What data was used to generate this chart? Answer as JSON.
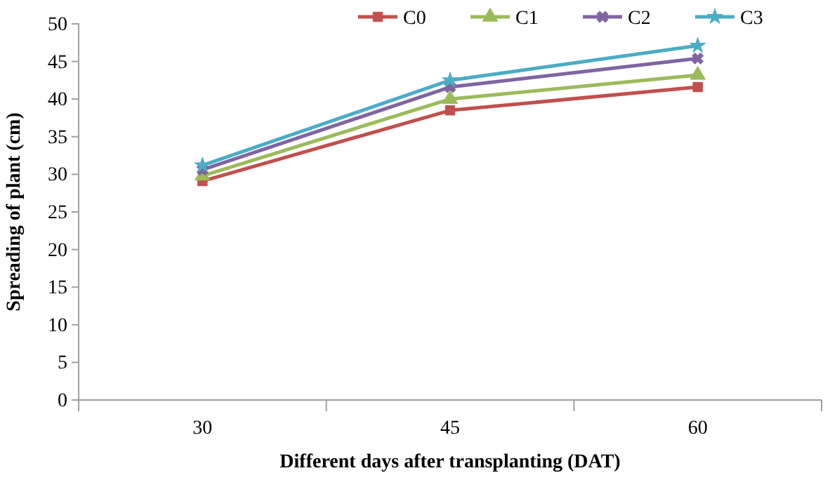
{
  "chart_data": {
    "type": "line",
    "xlabel": "Different days after transplanting (DAT)",
    "ylabel": "Spreading of plant (cm)",
    "categories": [
      "30",
      "45",
      "60"
    ],
    "series": [
      {
        "name": "C0",
        "color": "#c0504d",
        "marker": "square",
        "values": [
          29.1,
          38.5,
          41.6
        ]
      },
      {
        "name": "C1",
        "color": "#9bbb59",
        "marker": "triangle",
        "values": [
          29.8,
          40.0,
          43.2
        ]
      },
      {
        "name": "C2",
        "color": "#8064a2",
        "marker": "cross",
        "values": [
          30.6,
          41.6,
          45.4
        ]
      },
      {
        "name": "C3",
        "color": "#4bacc6",
        "marker": "star",
        "values": [
          31.2,
          42.5,
          47.1
        ]
      }
    ],
    "ylim": [
      0,
      50
    ],
    "yticks": [
      0,
      5,
      10,
      15,
      20,
      25,
      30,
      35,
      40,
      45,
      50
    ],
    "grid": false,
    "legend": "top right",
    "line_style": "solid"
  }
}
